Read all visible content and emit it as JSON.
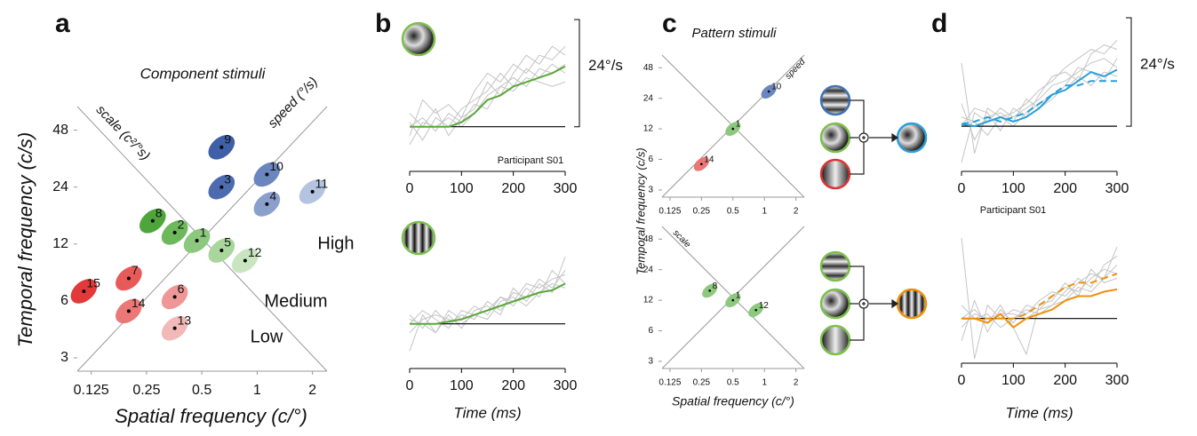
{
  "chart_data": [
    {
      "type": "scatter",
      "panel_label": "a",
      "title": "Component stimuli",
      "x_label": "Spatial frequency (c/°)",
      "y_label": "Temporal frequency (c/s)",
      "log_scale": true,
      "xlim": [
        0.105,
        2.4
      ],
      "ylim": [
        2.55,
        64
      ],
      "xticks": [
        0.125,
        0.25,
        0.5,
        1,
        2
      ],
      "yticks": [
        3,
        6,
        12,
        24,
        48
      ],
      "scale_label": "scale (c²/°s)",
      "speed_label": "speed (°/s)",
      "series": [
        {
          "name": "High",
          "color": "#3556a0",
          "labels": [
            "9",
            "3",
            "10",
            "4",
            "11"
          ],
          "x": [
            0.64,
            0.64,
            1.13,
            1.13,
            2.0
          ],
          "values": [
            39,
            24,
            28,
            19.5,
            22.7
          ],
          "colors": [
            "#3f5fa6",
            "#4d6cb0",
            "#6b86bf",
            "#8aa0cc",
            "#b4c3e0"
          ]
        },
        {
          "name": "Medium",
          "color": "#5cb040",
          "labels": [
            "8",
            "2",
            "1",
            "5",
            "12"
          ],
          "x": [
            0.27,
            0.356,
            0.47,
            0.64,
            0.86
          ],
          "values": [
            15.9,
            13.8,
            12.5,
            11.1,
            9.8
          ],
          "colors": [
            "#4ea63b",
            "#6cb85a",
            "#8cc87d",
            "#a8d69c",
            "#c8e5c0"
          ]
        },
        {
          "name": "Low",
          "color": "#e0262b",
          "labels": [
            "15",
            "7",
            "14",
            "6",
            "13"
          ],
          "x": [
            0.114,
            0.2,
            0.2,
            0.356,
            0.356
          ],
          "values": [
            6.75,
            7.9,
            5.3,
            6.3,
            4.3
          ],
          "colors": [
            "#e23a3a",
            "#e85a5a",
            "#eb7777",
            "#ef9797",
            "#f3b8b8"
          ]
        }
      ]
    },
    {
      "type": "line",
      "panel_label": "b",
      "annotation": "Participant S01",
      "x": [
        0,
        25,
        50,
        75,
        100,
        125,
        150,
        175,
        200,
        225,
        250,
        275,
        300
      ],
      "xlim": [
        0,
        300
      ],
      "xticks": [
        0,
        100,
        200,
        300
      ],
      "ylim": [
        -10,
        24
      ],
      "scale_bar": {
        "value": 24,
        "label": "24°/s"
      },
      "traces": {
        "color": "#c4c4c4",
        "lines": [
          [
            -2,
            6,
            3,
            5,
            2,
            8,
            12,
            10,
            14,
            12,
            16,
            15,
            18
          ],
          [
            1,
            -3,
            2,
            0,
            4,
            6,
            8,
            12,
            9,
            13,
            11,
            14,
            12
          ],
          [
            0,
            2,
            -1,
            3,
            1,
            5,
            4,
            9,
            8,
            11,
            10,
            9,
            10
          ],
          [
            3,
            0,
            4,
            -2,
            2,
            4,
            10,
            7,
            12,
            16,
            14,
            18,
            16
          ],
          [
            -4,
            1,
            0,
            2,
            0,
            3,
            7,
            9,
            11,
            9,
            13,
            12,
            14
          ]
        ]
      },
      "series": [
        {
          "color": "#5aa83a",
          "values": [
            0,
            0,
            0,
            0,
            1,
            3,
            6,
            7,
            9,
            10,
            11,
            12,
            13.5
          ]
        }
      ]
    },
    {
      "type": "line",
      "x": [
        0,
        25,
        50,
        75,
        100,
        125,
        150,
        175,
        200,
        225,
        250,
        275,
        300
      ],
      "xlim": [
        0,
        300
      ],
      "xticks": [
        0,
        100,
        200,
        300
      ],
      "ylim": [
        -10,
        20
      ],
      "traces": {
        "color": "#c4c4c4",
        "lines": [
          [
            -6,
            2,
            -2,
            3,
            1,
            4,
            2,
            6,
            5,
            9,
            8,
            10,
            11
          ],
          [
            2,
            -1,
            3,
            0,
            2,
            1,
            5,
            3,
            7,
            6,
            10,
            8,
            12
          ],
          [
            0,
            3,
            1,
            -1,
            3,
            2,
            3,
            6,
            4,
            8,
            6,
            12,
            9
          ],
          [
            1,
            0,
            -2,
            2,
            -1,
            3,
            4,
            2,
            8,
            5,
            9,
            7,
            15
          ],
          [
            -2,
            1,
            2,
            1,
            0,
            2,
            1,
            5,
            6,
            4,
            7,
            9,
            8
          ]
        ]
      },
      "series": [
        {
          "color": "#5aa83a",
          "values": [
            0,
            0,
            0,
            0.5,
            1,
            2,
            3,
            4,
            5,
            6,
            7,
            7.5,
            9
          ]
        }
      ],
      "x_label": "Time (ms)"
    },
    {
      "type": "scatter",
      "panel_label": "c",
      "title": "Pattern stimuli",
      "y_label": "Temporal frequency (c/s)",
      "log_scale": true,
      "xlim": [
        0.105,
        2.4
      ],
      "ylim": [
        2.55,
        64
      ],
      "xticks": [
        0.125,
        0.25,
        0.5,
        1,
        2
      ],
      "yticks": [
        3,
        6,
        12,
        24,
        48
      ],
      "speed_label": "speed",
      "series": [
        {
          "color": "#8cc87d",
          "labels": [
            "10",
            "1",
            "14"
          ],
          "x": [
            1.1,
            0.5,
            0.25
          ],
          "values": [
            28,
            12,
            5.4
          ],
          "colors": [
            "#6b86bf",
            "#8cc87d",
            "#eb7777"
          ]
        }
      ]
    },
    {
      "type": "scatter",
      "x_label": "Spatial frequency (c/°)",
      "log_scale": true,
      "xlim": [
        0.105,
        2.4
      ],
      "ylim": [
        2.55,
        64
      ],
      "xticks": [
        0.125,
        0.25,
        0.5,
        1,
        2
      ],
      "yticks": [
        3,
        6,
        12,
        24,
        48
      ],
      "scale_label": "scale",
      "series": [
        {
          "color": "#8cc87d",
          "labels": [
            "8",
            "1",
            "12"
          ],
          "x": [
            0.3,
            0.5,
            0.83
          ],
          "values": [
            14.9,
            12,
            9.6
          ],
          "colors": [
            "#8cc87d",
            "#8cc87d",
            "#8cc87d"
          ]
        }
      ]
    },
    {
      "type": "line",
      "panel_label": "d",
      "annotation": "Participant S01",
      "x": [
        0,
        25,
        50,
        75,
        100,
        125,
        150,
        175,
        200,
        225,
        250,
        275,
        300
      ],
      "xlim": [
        0,
        300
      ],
      "xticks": [
        0,
        100,
        200,
        300
      ],
      "ylim": [
        -10,
        24
      ],
      "scale_bar": {
        "value": 24,
        "label": "24°/s"
      },
      "traces": {
        "color": "#c4c4c4",
        "lines": [
          [
            14,
            -6,
            4,
            2,
            3,
            5,
            8,
            10,
            13,
            15,
            17,
            16,
            19
          ],
          [
            -8,
            3,
            1,
            4,
            2,
            4,
            6,
            9,
            10,
            12,
            14,
            15,
            13
          ],
          [
            2,
            1,
            -2,
            2,
            0,
            3,
            5,
            7,
            8,
            11,
            9,
            12,
            11
          ],
          [
            0,
            4,
            3,
            -1,
            4,
            2,
            7,
            11,
            12,
            10,
            16,
            18,
            17
          ],
          [
            5,
            -3,
            2,
            3,
            1,
            6,
            4,
            6,
            9,
            13,
            12,
            10,
            15
          ]
        ]
      },
      "series": [
        {
          "color": "#2a9fd8",
          "values": [
            0.5,
            0,
            1,
            2,
            1,
            2,
            4,
            7,
            8,
            10,
            12,
            11,
            12.5
          ]
        },
        {
          "color": "#2a9fd8",
          "dash": true,
          "values": [
            0.5,
            1,
            2,
            1,
            2,
            3,
            5,
            7,
            9,
            9,
            10,
            10,
            10
          ]
        }
      ]
    },
    {
      "type": "line",
      "x": [
        0,
        25,
        50,
        75,
        100,
        125,
        150,
        175,
        200,
        225,
        250,
        275,
        300
      ],
      "xlim": [
        0,
        300
      ],
      "xticks": [
        0,
        100,
        200,
        300
      ],
      "ylim": [
        -10,
        20
      ],
      "traces": {
        "color": "#c4c4c4",
        "lines": [
          [
            18,
            -9,
            3,
            0,
            2,
            1,
            4,
            6,
            5,
            8,
            10,
            9,
            12
          ],
          [
            -5,
            4,
            -3,
            2,
            -1,
            3,
            2,
            5,
            7,
            6,
            9,
            11,
            10
          ],
          [
            3,
            0,
            1,
            -2,
            0,
            2,
            1,
            3,
            6,
            9,
            7,
            12,
            14
          ],
          [
            0,
            2,
            -1,
            3,
            -2,
            -8,
            3,
            4,
            8,
            5,
            11,
            8,
            9
          ],
          [
            -2,
            1,
            0,
            1,
            1,
            0,
            2,
            3,
            4,
            7,
            6,
            9,
            16
          ]
        ]
      },
      "series": [
        {
          "color": "#f0900a",
          "values": [
            0,
            0,
            -1,
            1,
            -2,
            0,
            1,
            2,
            4,
            5,
            5,
            6,
            6.5
          ]
        },
        {
          "color": "#f0900a",
          "dash": true,
          "values": [
            0,
            0,
            0,
            0,
            0,
            1,
            3,
            5,
            7,
            8,
            8,
            9,
            10
          ]
        }
      ],
      "x_label": "Time (ms)"
    }
  ]
}
